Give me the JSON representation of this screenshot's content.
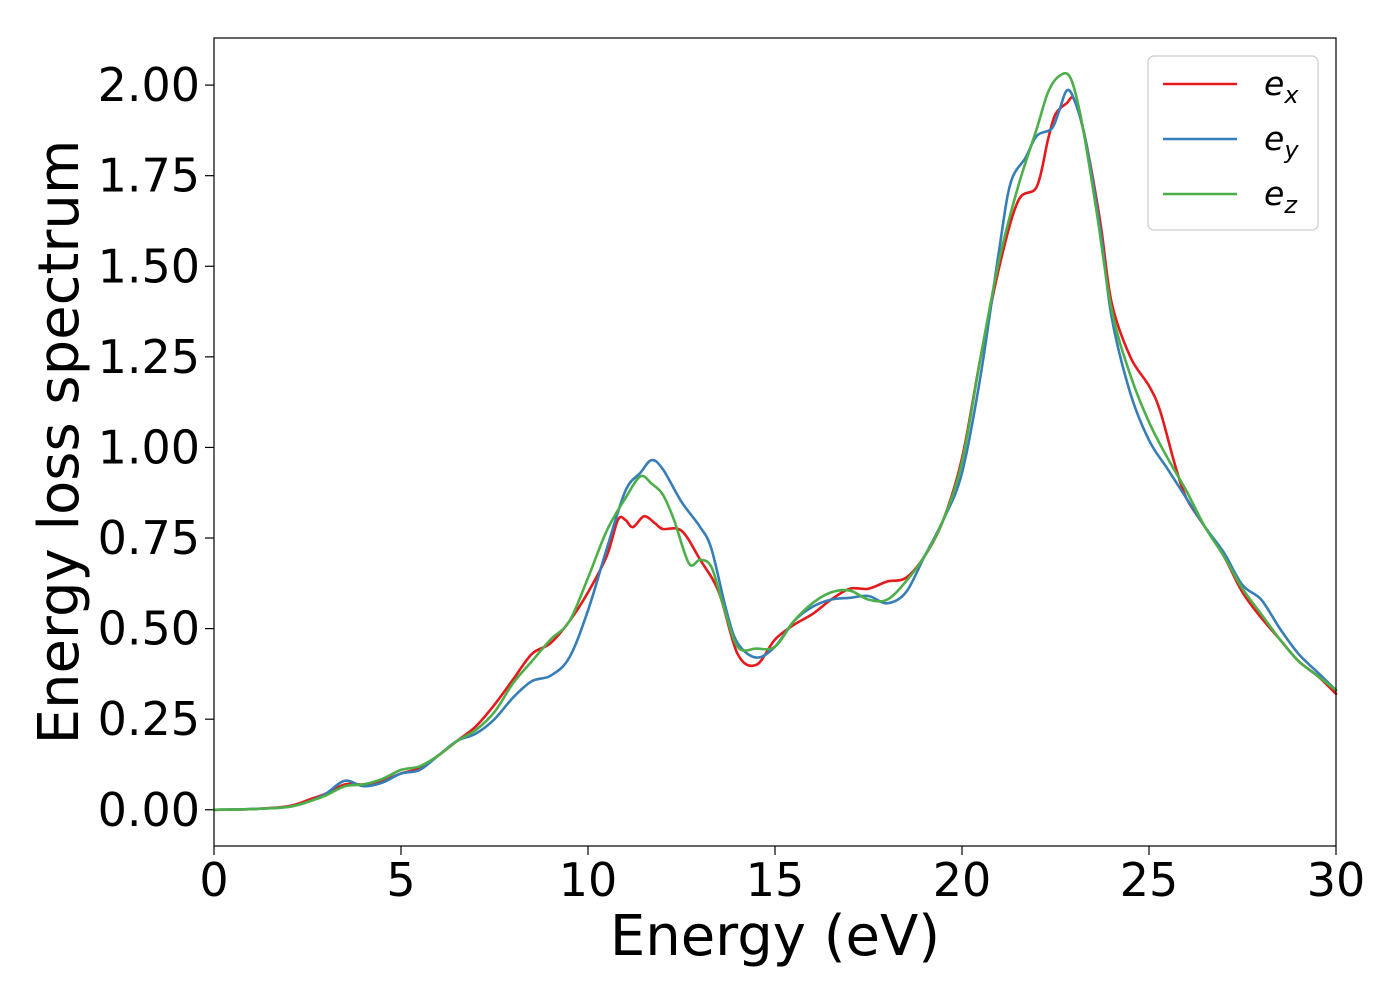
{
  "chart_data": {
    "type": "line",
    "title": "",
    "xlabel": "Energy (eV)",
    "ylabel": "Energy loss spectrum",
    "xlim": [
      0,
      30
    ],
    "ylim": [
      -0.1,
      2.13
    ],
    "xticks": [
      0,
      5,
      10,
      15,
      20,
      25,
      30
    ],
    "xtick_labels": [
      "0",
      "5",
      "10",
      "15",
      "20",
      "25",
      "30"
    ],
    "yticks": [
      0,
      0.25,
      0.5,
      0.75,
      1.0,
      1.25,
      1.5,
      1.75,
      2.0
    ],
    "ytick_labels": [
      "0.00",
      "0.25",
      "0.50",
      "0.75",
      "1.00",
      "1.25",
      "1.50",
      "1.75",
      "2.00"
    ],
    "grid": false,
    "legend_position": "top-right",
    "series": [
      {
        "name": "e",
        "subscript": "x",
        "color": "#e41a1c",
        "points": [
          [
            0,
            0
          ],
          [
            1,
            0.002
          ],
          [
            2,
            0.01
          ],
          [
            2.6,
            0.03
          ],
          [
            3,
            0.045
          ],
          [
            3.5,
            0.07
          ],
          [
            4,
            0.07
          ],
          [
            4.5,
            0.08
          ],
          [
            5,
            0.1
          ],
          [
            5.5,
            0.115
          ],
          [
            6,
            0.15
          ],
          [
            6.5,
            0.19
          ],
          [
            7,
            0.23
          ],
          [
            7.5,
            0.29
          ],
          [
            8,
            0.36
          ],
          [
            8.5,
            0.43
          ],
          [
            9,
            0.46
          ],
          [
            9.5,
            0.52
          ],
          [
            10,
            0.6
          ],
          [
            10.5,
            0.7
          ],
          [
            10.8,
            0.8
          ],
          [
            11,
            0.8
          ],
          [
            11.2,
            0.78
          ],
          [
            11.5,
            0.81
          ],
          [
            11.8,
            0.79
          ],
          [
            12,
            0.775
          ],
          [
            12.5,
            0.77
          ],
          [
            13,
            0.69
          ],
          [
            13.5,
            0.6
          ],
          [
            14,
            0.43
          ],
          [
            14.5,
            0.4
          ],
          [
            15,
            0.47
          ],
          [
            15.5,
            0.51
          ],
          [
            16,
            0.54
          ],
          [
            16.5,
            0.58
          ],
          [
            17,
            0.61
          ],
          [
            17.5,
            0.61
          ],
          [
            18,
            0.63
          ],
          [
            18.5,
            0.64
          ],
          [
            19,
            0.7
          ],
          [
            19.5,
            0.8
          ],
          [
            20,
            0.97
          ],
          [
            20.5,
            1.25
          ],
          [
            21,
            1.5
          ],
          [
            21.5,
            1.68
          ],
          [
            22,
            1.72
          ],
          [
            22.3,
            1.85
          ],
          [
            22.5,
            1.92
          ],
          [
            22.8,
            1.95
          ],
          [
            23,
            1.96
          ],
          [
            23.3,
            1.85
          ],
          [
            23.7,
            1.62
          ],
          [
            24,
            1.4
          ],
          [
            24.5,
            1.25
          ],
          [
            25,
            1.17
          ],
          [
            25.3,
            1.1
          ],
          [
            25.7,
            0.95
          ],
          [
            26,
            0.86
          ],
          [
            26.5,
            0.78
          ],
          [
            27,
            0.7
          ],
          [
            27.5,
            0.6
          ],
          [
            28,
            0.53
          ],
          [
            28.5,
            0.47
          ],
          [
            29,
            0.41
          ],
          [
            29.5,
            0.37
          ],
          [
            30,
            0.32
          ]
        ]
      },
      {
        "name": "e",
        "subscript": "y",
        "color": "#377eb8",
        "points": [
          [
            0,
            0
          ],
          [
            1,
            0.002
          ],
          [
            2,
            0.008
          ],
          [
            2.6,
            0.025
          ],
          [
            3,
            0.045
          ],
          [
            3.5,
            0.08
          ],
          [
            4,
            0.065
          ],
          [
            4.5,
            0.075
          ],
          [
            5,
            0.1
          ],
          [
            5.5,
            0.11
          ],
          [
            6,
            0.15
          ],
          [
            6.5,
            0.19
          ],
          [
            7,
            0.21
          ],
          [
            7.5,
            0.25
          ],
          [
            8,
            0.31
          ],
          [
            8.5,
            0.355
          ],
          [
            9,
            0.37
          ],
          [
            9.5,
            0.42
          ],
          [
            10,
            0.55
          ],
          [
            10.5,
            0.72
          ],
          [
            11,
            0.88
          ],
          [
            11.4,
            0.93
          ],
          [
            11.7,
            0.965
          ],
          [
            12,
            0.94
          ],
          [
            12.5,
            0.85
          ],
          [
            13,
            0.78
          ],
          [
            13.3,
            0.72
          ],
          [
            13.7,
            0.55
          ],
          [
            14,
            0.46
          ],
          [
            14.5,
            0.42
          ],
          [
            15,
            0.45
          ],
          [
            15.5,
            0.52
          ],
          [
            16,
            0.56
          ],
          [
            16.5,
            0.58
          ],
          [
            17,
            0.585
          ],
          [
            17.5,
            0.59
          ],
          [
            18,
            0.57
          ],
          [
            18.5,
            0.6
          ],
          [
            19,
            0.7
          ],
          [
            19.5,
            0.8
          ],
          [
            20,
            0.93
          ],
          [
            20.5,
            1.2
          ],
          [
            21,
            1.55
          ],
          [
            21.3,
            1.73
          ],
          [
            21.7,
            1.8
          ],
          [
            22,
            1.86
          ],
          [
            22.4,
            1.88
          ],
          [
            22.6,
            1.93
          ],
          [
            22.8,
            1.985
          ],
          [
            23,
            1.96
          ],
          [
            23.3,
            1.85
          ],
          [
            23.7,
            1.6
          ],
          [
            24,
            1.36
          ],
          [
            24.5,
            1.15
          ],
          [
            25,
            1.02
          ],
          [
            25.5,
            0.94
          ],
          [
            26,
            0.86
          ],
          [
            26.5,
            0.78
          ],
          [
            27,
            0.71
          ],
          [
            27.5,
            0.62
          ],
          [
            28,
            0.58
          ],
          [
            28.5,
            0.5
          ],
          [
            29,
            0.43
          ],
          [
            29.5,
            0.38
          ],
          [
            30,
            0.33
          ]
        ]
      },
      {
        "name": "e",
        "subscript": "z",
        "color": "#4daf4a",
        "points": [
          [
            0,
            0
          ],
          [
            1,
            0.002
          ],
          [
            2,
            0.008
          ],
          [
            2.6,
            0.025
          ],
          [
            3,
            0.04
          ],
          [
            3.5,
            0.065
          ],
          [
            4,
            0.07
          ],
          [
            4.5,
            0.085
          ],
          [
            5,
            0.11
          ],
          [
            5.5,
            0.12
          ],
          [
            6,
            0.15
          ],
          [
            6.5,
            0.19
          ],
          [
            7,
            0.22
          ],
          [
            7.5,
            0.27
          ],
          [
            8,
            0.35
          ],
          [
            8.5,
            0.41
          ],
          [
            9,
            0.47
          ],
          [
            9.5,
            0.52
          ],
          [
            10,
            0.64
          ],
          [
            10.5,
            0.77
          ],
          [
            11,
            0.86
          ],
          [
            11.4,
            0.92
          ],
          [
            11.7,
            0.9
          ],
          [
            12,
            0.87
          ],
          [
            12.3,
            0.8
          ],
          [
            12.7,
            0.68
          ],
          [
            13,
            0.69
          ],
          [
            13.3,
            0.67
          ],
          [
            13.6,
            0.57
          ],
          [
            14,
            0.45
          ],
          [
            14.5,
            0.445
          ],
          [
            15,
            0.45
          ],
          [
            15.5,
            0.52
          ],
          [
            16,
            0.57
          ],
          [
            16.5,
            0.6
          ],
          [
            17,
            0.605
          ],
          [
            17.5,
            0.58
          ],
          [
            18,
            0.58
          ],
          [
            18.5,
            0.63
          ],
          [
            19,
            0.7
          ],
          [
            19.5,
            0.8
          ],
          [
            20,
            0.96
          ],
          [
            20.5,
            1.25
          ],
          [
            21,
            1.52
          ],
          [
            21.5,
            1.72
          ],
          [
            22,
            1.88
          ],
          [
            22.3,
            1.98
          ],
          [
            22.6,
            2.025
          ],
          [
            22.9,
            2.02
          ],
          [
            23.2,
            1.9
          ],
          [
            23.6,
            1.65
          ],
          [
            24,
            1.38
          ],
          [
            24.5,
            1.2
          ],
          [
            25,
            1.07
          ],
          [
            25.5,
            0.97
          ],
          [
            26,
            0.88
          ],
          [
            26.5,
            0.78
          ],
          [
            27,
            0.7
          ],
          [
            27.5,
            0.61
          ],
          [
            28,
            0.54
          ],
          [
            28.5,
            0.47
          ],
          [
            29,
            0.41
          ],
          [
            29.5,
            0.37
          ],
          [
            30,
            0.33
          ]
        ]
      }
    ]
  }
}
